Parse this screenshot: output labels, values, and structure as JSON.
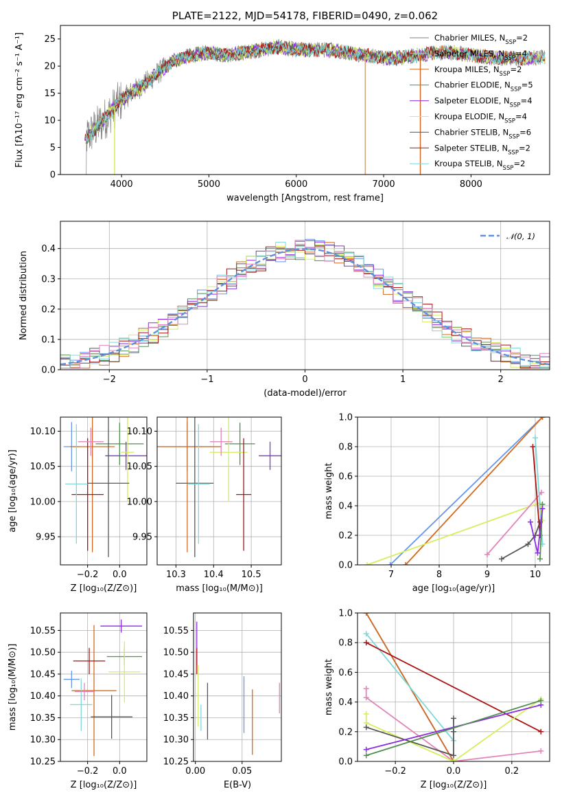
{
  "colors": {
    "miles_chabrier": "#6495ed",
    "miles_salpeter": "#e0e0e0",
    "miles_kroupa": "#d2691e",
    "elodie_chabrier": "#4f8f4f",
    "elodie_salpeter": "#8a2be2",
    "elodie_kroupa": "#d4ef5a",
    "stelib_chabrier": "#555555",
    "stelib_salpeter": "#aa1111",
    "stelib_kroupa": "#7fd7d7",
    "pink": "#e284b8",
    "normal": "#5f8fdf",
    "grey_spec": "#808080"
  },
  "chart_data": [
    {
      "id": "spectrum",
      "type": "line",
      "title": "PLATE=2122, MJD=54178, FIBERID=0490, z=0.062",
      "xlabel": "wavelength [Angstrom, rest frame]",
      "ylabel": "Flux [fλ10⁻¹⁷ erg cm⁻² s⁻¹ A⁻¹]",
      "xlim": [
        3300,
        8900
      ],
      "ylim": [
        0,
        27.5
      ],
      "xticks": [
        "4000",
        "5000",
        "6000",
        "7000",
        "8000"
      ],
      "yticks": [
        "0",
        "5",
        "10",
        "15",
        "20",
        "25"
      ],
      "legend_position": "right",
      "legend": [
        {
          "name": "Chabrier MILES, N",
          "sub": "SSP",
          "val": "=2",
          "color": "#808080"
        },
        {
          "name": "Salpeter MILES, N",
          "sub": "SSP",
          "val": "=4",
          "color": "#7fd7d7"
        },
        {
          "name": "Kroupa MILES, N",
          "sub": "SSP",
          "val": "=2",
          "color": "#d2691e"
        },
        {
          "name": "Chabrier ELODIE, N",
          "sub": "SSP",
          "val": "=5",
          "color": "#4f8f4f"
        },
        {
          "name": "Salpeter ELODIE, N",
          "sub": "SSP",
          "val": "=4",
          "color": "#8a2be2"
        },
        {
          "name": "Kroupa ELODIE, N",
          "sub": "SSP",
          "val": "=4",
          "color": "#d4ef5a"
        },
        {
          "name": "Chabrier STELIB, N",
          "sub": "SSP",
          "val": "=6",
          "color": "#555555"
        },
        {
          "name": "Salpeter STELIB, N",
          "sub": "SSP",
          "val": "=2",
          "color": "#aa1111"
        },
        {
          "name": "Kroupa STELIB, N",
          "sub": "SSP",
          "val": "=2",
          "color": "#7fd7d7"
        }
      ],
      "continuum": [
        [
          3580,
          6.5
        ],
        [
          3700,
          8.5
        ],
        [
          3850,
          11
        ],
        [
          3950,
          13
        ],
        [
          4100,
          15
        ],
        [
          4250,
          16.5
        ],
        [
          4400,
          18.5
        ],
        [
          4600,
          21
        ],
        [
          4800,
          22
        ],
        [
          5000,
          22.5
        ],
        [
          5200,
          22
        ],
        [
          5400,
          22.5
        ],
        [
          5600,
          23
        ],
        [
          5800,
          23.5
        ],
        [
          6000,
          23
        ],
        [
          6200,
          23
        ],
        [
          6400,
          23
        ],
        [
          6600,
          22.5
        ],
        [
          6800,
          22
        ],
        [
          7000,
          21.5
        ],
        [
          7200,
          21.5
        ],
        [
          7400,
          22
        ],
        [
          7600,
          22.5
        ],
        [
          7800,
          22.5
        ],
        [
          8000,
          22
        ],
        [
          8300,
          21.5
        ],
        [
          8600,
          21.5
        ],
        [
          8850,
          21.5
        ]
      ]
    },
    {
      "id": "residuals",
      "type": "line",
      "xlabel": "(data-model)/error",
      "ylabel": "Normed distribution",
      "xlim": [
        -2.5,
        2.5
      ],
      "ylim": [
        0,
        0.49
      ],
      "xticks": [
        "−2",
        "−1",
        "0",
        "1",
        "2"
      ],
      "yticks": [
        "0.0",
        "0.1",
        "0.2",
        "0.3",
        "0.4"
      ],
      "grid": true,
      "legend": [
        {
          "name": "𝒩(0, 1)",
          "color": "#5f8fdf"
        }
      ],
      "legend_position": "top-right"
    },
    {
      "id": "age_vs_Z",
      "type": "scatter",
      "xlabel": "Z [log₁₀(Z/Z⊙)]",
      "ylabel": "age  [log₁₀(age/yr)]",
      "xlim": [
        -0.37,
        0.17
      ],
      "ylim": [
        9.91,
        10.12
      ],
      "xticks": [
        "−0.2",
        "0.0"
      ],
      "yticks": [
        "9.95",
        "10.00",
        "10.05",
        "10.10"
      ],
      "points": [
        {
          "x": -0.3,
          "xe": 0.05,
          "y": 10.078,
          "ye": 0.035,
          "color": "#6495ed"
        },
        {
          "x": -0.17,
          "xe": 0.14,
          "y": 10.078,
          "ye": 0.15,
          "color": "#d2691e"
        },
        {
          "x": 0.0,
          "xe": 0.15,
          "y": 10.082,
          "ye": 0.03,
          "color": "#4f8f4f"
        },
        {
          "x": 0.04,
          "xe": 0.13,
          "y": 10.065,
          "ye": 0.02,
          "color": "#8a2be2"
        },
        {
          "x": 0.05,
          "xe": 0.04,
          "y": 10.07,
          "ye": 0.07,
          "color": "#d4ef5a"
        },
        {
          "x": -0.07,
          "xe": 0.13,
          "y": 10.026,
          "ye": 0.105,
          "color": "#555555"
        },
        {
          "x": -0.2,
          "xe": 0.1,
          "y": 10.01,
          "ye": 0.08,
          "color": "#aa1111"
        },
        {
          "x": -0.27,
          "xe": 0.07,
          "y": 10.025,
          "ye": 0.085,
          "color": "#7fd7d7"
        },
        {
          "x": -0.18,
          "xe": 0.08,
          "y": 10.085,
          "ye": 0.02,
          "color": "#e284b8"
        }
      ]
    },
    {
      "id": "age_vs_mass",
      "type": "scatter",
      "xlabel": "mass [log₁₀(M/M⊙)]",
      "xlim": [
        10.25,
        10.58
      ],
      "ylim": [
        9.91,
        10.12
      ],
      "xticks": [
        "10.3",
        "10.4",
        "10.5"
      ],
      "yticks": [
        "9.95",
        "10.00",
        "10.05",
        "10.10"
      ],
      "points": [
        {
          "x": 10.33,
          "xe": 0.09,
          "y": 10.078,
          "ye": 0.035,
          "color": "#6495ed"
        },
        {
          "x": 10.33,
          "xe": 0.09,
          "y": 10.078,
          "ye": 0.15,
          "color": "#d2691e"
        },
        {
          "x": 10.47,
          "xe": 0.04,
          "y": 10.082,
          "ye": 0.03,
          "color": "#4f8f4f"
        },
        {
          "x": 10.55,
          "xe": 0.03,
          "y": 10.065,
          "ye": 0.02,
          "color": "#8a2be2"
        },
        {
          "x": 10.44,
          "xe": 0.05,
          "y": 10.07,
          "ye": 0.07,
          "color": "#d4ef5a"
        },
        {
          "x": 10.35,
          "xe": 0.05,
          "y": 10.026,
          "ye": 0.105,
          "color": "#555555"
        },
        {
          "x": 10.48,
          "xe": 0.02,
          "y": 10.01,
          "ye": 0.08,
          "color": "#aa1111"
        },
        {
          "x": 10.36,
          "xe": 0.03,
          "y": 10.025,
          "ye": 0.085,
          "color": "#7fd7d7"
        },
        {
          "x": 10.42,
          "xe": 0.03,
          "y": 10.085,
          "ye": 0.02,
          "color": "#e284b8"
        }
      ]
    },
    {
      "id": "weight_vs_age",
      "type": "line",
      "xlabel": "age  [log₁₀(age/yr)]",
      "ylabel": "mass weight",
      "xlim": [
        6.3,
        10.3
      ],
      "ylim": [
        0,
        1.0
      ],
      "xticks": [
        "7",
        "8",
        "9",
        "10"
      ],
      "yticks": [
        "0.0",
        "0.2",
        "0.4",
        "0.6",
        "0.8",
        "1.0"
      ],
      "grid": true,
      "series": [
        {
          "color": "#6495ed",
          "points": [
            [
              6.98,
              0.0
            ],
            [
              10.15,
              1.0
            ]
          ]
        },
        {
          "color": "#d2691e",
          "points": [
            [
              7.3,
              0.0
            ],
            [
              10.15,
              1.0
            ]
          ]
        },
        {
          "color": "#d4ef5a",
          "points": [
            [
              6.5,
              0.0
            ],
            [
              10.1,
              0.42
            ],
            [
              10.15,
              0.3
            ]
          ]
        },
        {
          "color": "#e284b8",
          "points": [
            [
              9.0,
              0.07
            ],
            [
              10.13,
              0.49
            ]
          ]
        },
        {
          "color": "#555555",
          "points": [
            [
              9.3,
              0.04
            ],
            [
              9.85,
              0.14
            ],
            [
              10.0,
              0.2
            ],
            [
              10.1,
              0.29
            ]
          ]
        },
        {
          "color": "#aa1111",
          "points": [
            [
              9.95,
              0.8
            ],
            [
              10.1,
              0.2
            ]
          ]
        },
        {
          "color": "#7fd7d7",
          "points": [
            [
              10.0,
              0.86
            ],
            [
              10.15,
              0.14
            ]
          ]
        },
        {
          "color": "#4f8f4f",
          "points": [
            [
              10.1,
              0.04
            ],
            [
              10.15,
              0.41
            ]
          ]
        },
        {
          "color": "#8a2be2",
          "points": [
            [
              9.9,
              0.29
            ],
            [
              10.05,
              0.08
            ],
            [
              10.15,
              0.38
            ]
          ]
        }
      ]
    },
    {
      "id": "mass_vs_Z",
      "type": "scatter",
      "xlabel": "Z [log₁₀(Z/Z⊙)]",
      "ylabel": "mass [log₁₀(M/M⊙)]",
      "xlim": [
        -0.37,
        0.17
      ],
      "ylim": [
        10.25,
        10.59
      ],
      "xticks": [
        "−0.2",
        "0.0"
      ],
      "yticks": [
        "10.25",
        "10.30",
        "10.35",
        "10.40",
        "10.45",
        "10.50",
        "10.55"
      ],
      "points": [
        {
          "x": -0.3,
          "xe": 0.05,
          "y": 10.438,
          "ye": 0.02,
          "color": "#6495ed"
        },
        {
          "x": -0.16,
          "xe": 0.14,
          "y": 10.412,
          "ye": 0.15,
          "color": "#d2691e"
        },
        {
          "x": 0.03,
          "xe": 0.11,
          "y": 10.49,
          "ye": 0.02,
          "color": "#4f8f4f"
        },
        {
          "x": 0.01,
          "xe": 0.13,
          "y": 10.56,
          "ye": 0.015,
          "color": "#8a2be2"
        },
        {
          "x": 0.03,
          "xe": 0.1,
          "y": 10.455,
          "ye": 0.07,
          "color": "#d4ef5a"
        },
        {
          "x": -0.05,
          "xe": 0.13,
          "y": 10.352,
          "ye": 0.05,
          "color": "#555555"
        },
        {
          "x": -0.19,
          "xe": 0.1,
          "y": 10.48,
          "ye": 0.03,
          "color": "#aa1111"
        },
        {
          "x": -0.24,
          "xe": 0.07,
          "y": 10.38,
          "ye": 0.06,
          "color": "#7fd7d7"
        },
        {
          "x": -0.22,
          "xe": 0.06,
          "y": 10.41,
          "ye": 0.02,
          "color": "#e284b8"
        }
      ]
    },
    {
      "id": "mass_vs_EBV",
      "type": "scatter",
      "xlabel": "E(B-V)",
      "xlim": [
        -0.002,
        0.092
      ],
      "ylim": [
        10.25,
        10.59
      ],
      "xticks": [
        "0.00",
        "0.05"
      ],
      "yticks": [
        "10.25",
        "10.30",
        "10.35",
        "10.40",
        "10.45",
        "10.50",
        "10.55"
      ],
      "points": [
        {
          "x": 0.0015,
          "xe": 0,
          "y": 10.52,
          "ye": 0.05,
          "color": "#8a2be2"
        },
        {
          "x": 0.0015,
          "xe": 0,
          "y": 10.48,
          "ye": 0.03,
          "color": "#aa1111"
        },
        {
          "x": 0.003,
          "xe": 0,
          "y": 10.4,
          "ye": 0.07,
          "color": "#d4ef5a"
        },
        {
          "x": 0.006,
          "xe": 0,
          "y": 10.35,
          "ye": 0.03,
          "color": "#7fd7d7"
        },
        {
          "x": 0.013,
          "xe": 0,
          "y": 10.365,
          "ye": 0.065,
          "color": "#555555"
        },
        {
          "x": 0.052,
          "xe": 0,
          "y": 10.38,
          "ye": 0.065,
          "color": "#6495ed"
        },
        {
          "x": 0.061,
          "xe": 0,
          "y": 10.34,
          "ye": 0.075,
          "color": "#d2691e"
        },
        {
          "x": 0.09,
          "xe": 0,
          "y": 10.395,
          "ye": 0.035,
          "color": "#e284b8"
        }
      ]
    },
    {
      "id": "weight_vs_Z",
      "type": "line",
      "xlabel": "Z [log₁₀(Z/Z⊙)]",
      "ylabel": "mass weight",
      "xlim": [
        -0.33,
        0.33
      ],
      "ylim": [
        0,
        1.0
      ],
      "xticks": [
        "−0.2",
        "0.0",
        "0.2"
      ],
      "yticks": [
        "0.0",
        "0.2",
        "0.4",
        "0.6",
        "0.8",
        "1.0"
      ],
      "grid": true,
      "series": [
        {
          "color": "#6495ed",
          "points": [
            [
              -0.3,
              1.0
            ],
            [
              0.0,
              0.0
            ]
          ]
        },
        {
          "color": "#d2691e",
          "points": [
            [
              -0.3,
              1.0
            ],
            [
              0.0,
              0.0
            ]
          ]
        },
        {
          "color": "#7fd7d7",
          "points": [
            [
              -0.3,
              0.86
            ],
            [
              0.0,
              0.14
            ]
          ]
        },
        {
          "color": "#aa1111",
          "points": [
            [
              -0.3,
              0.8
            ],
            [
              0.3,
              0.2
            ]
          ]
        },
        {
          "color": "#e284b8",
          "points": [
            [
              -0.3,
              0.49
            ],
            [
              -0.3,
              0.43
            ],
            [
              0.0,
              0.0
            ],
            [
              0.3,
              0.07
            ]
          ]
        },
        {
          "color": "#d4ef5a",
          "points": [
            [
              -0.3,
              0.32
            ],
            [
              -0.3,
              0.26
            ],
            [
              0.0,
              0.0
            ],
            [
              0.3,
              0.42
            ]
          ]
        },
        {
          "color": "#555555",
          "points": [
            [
              -0.3,
              0.23
            ],
            [
              0.0,
              0.04
            ],
            [
              0.0,
              0.29
            ],
            [
              0.0,
              0.2
            ]
          ]
        },
        {
          "color": "#8a2be2",
          "points": [
            [
              -0.3,
              0.08
            ],
            [
              0.3,
              0.38
            ]
          ]
        },
        {
          "color": "#4f8f4f",
          "points": [
            [
              -0.3,
              0.04
            ],
            [
              0.3,
              0.41
            ]
          ]
        }
      ]
    }
  ]
}
